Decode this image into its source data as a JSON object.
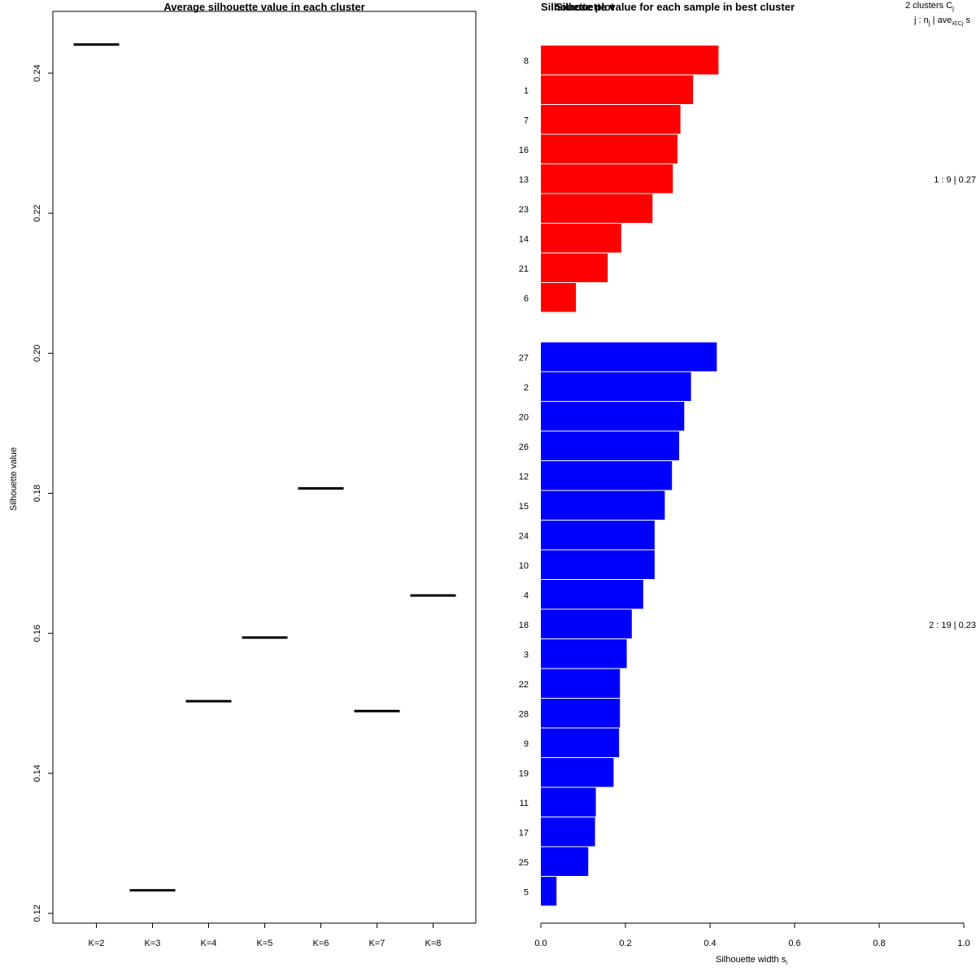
{
  "chart_data": [
    {
      "type": "line",
      "title": "Average silhouette value in each cluster",
      "xlabel": "",
      "ylabel": "Silhouette value",
      "ylim": [
        0.12,
        0.25
      ],
      "yticks": [
        0.12,
        0.14,
        0.16,
        0.18,
        0.2,
        0.22,
        0.24
      ],
      "ytick_labels": [
        "0.12",
        "0.14",
        "0.16",
        "0.18",
        "0.20",
        "0.22",
        "0.24"
      ],
      "categories": [
        "K=2",
        "K=3",
        "K=4",
        "K=5",
        "K=6",
        "K=7",
        "K=8"
      ],
      "values": [
        0.2441,
        0.1233,
        0.1503,
        0.1594,
        0.1807,
        0.1489,
        0.1654
      ]
    },
    {
      "type": "bar",
      "orientation": "horizontal",
      "title": "Silhouette value for each sample in best cluster",
      "overlay_title": "Silhouette plot",
      "xlabel": "Silhouette width s",
      "xlabel_sub": "i",
      "xlim": [
        0,
        1
      ],
      "xticks": [
        0,
        0.2,
        0.4,
        0.6,
        0.8,
        1.0
      ],
      "xtick_labels": [
        "0.0",
        "0.2",
        "0.4",
        "0.6",
        "0.8",
        "1.0"
      ],
      "header_line1": "2  clusters  C",
      "header_line1_sub": "j",
      "header_line2_a": "j :  n",
      "header_line2_sub": "j",
      "header_line2_b": " | ave",
      "header_line2_sub2": "i∈Cj",
      "header_line2_c": "  s",
      "clusters": [
        {
          "name": "1",
          "color": "#ff0000",
          "summary": "1 :  9  |  0.27",
          "labels": [
            "8",
            "1",
            "7",
            "16",
            "13",
            "23",
            "14",
            "21",
            "6"
          ],
          "values": [
            0.42,
            0.36,
            0.33,
            0.323,
            0.312,
            0.264,
            0.19,
            0.158,
            0.083
          ]
        },
        {
          "name": "2",
          "color": "#0000ff",
          "summary": "2 :  19  |  0.23",
          "labels": [
            "27",
            "2",
            "20",
            "26",
            "12",
            "15",
            "24",
            "10",
            "4",
            "18",
            "3",
            "22",
            "28",
            "9",
            "19",
            "11",
            "17",
            "25",
            "5"
          ],
          "values": [
            0.416,
            0.355,
            0.339,
            0.327,
            0.31,
            0.293,
            0.269,
            0.269,
            0.242,
            0.215,
            0.203,
            0.187,
            0.187,
            0.185,
            0.172,
            0.13,
            0.128,
            0.112,
            0.037
          ]
        }
      ]
    }
  ]
}
